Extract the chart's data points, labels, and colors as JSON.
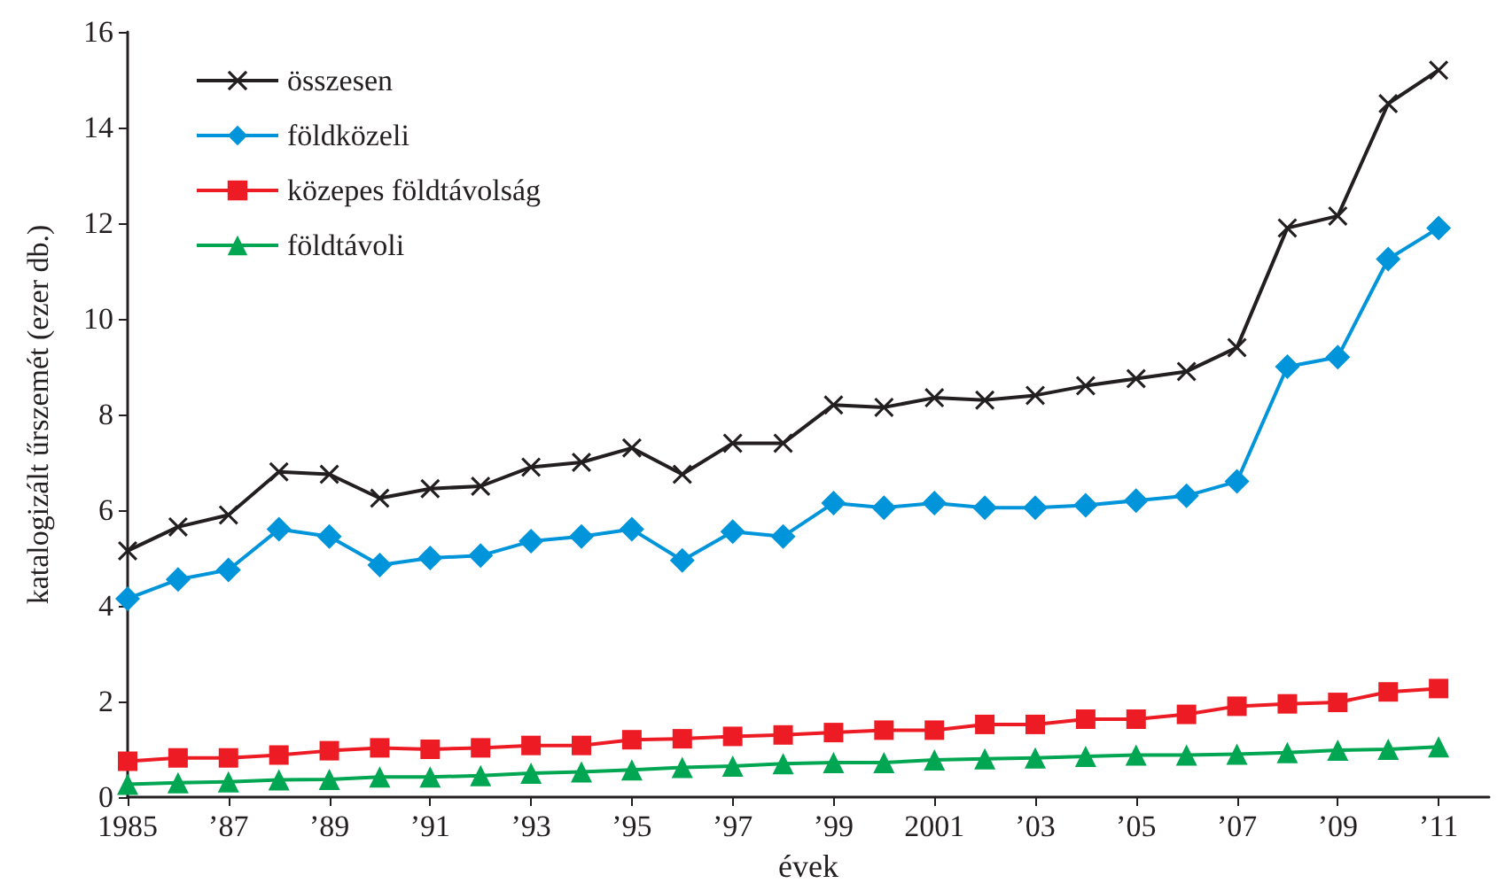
{
  "chart_data": {
    "type": "line",
    "xlabel": "évek",
    "ylabel": "katalogizált űrszemét (ezer db.)",
    "x": [
      1985,
      1986,
      1987,
      1988,
      1989,
      1990,
      1991,
      1992,
      1993,
      1994,
      1995,
      1996,
      1997,
      1998,
      1999,
      2000,
      2001,
      2002,
      2003,
      2004,
      2005,
      2006,
      2007,
      2008,
      2009,
      2010,
      2011
    ],
    "series": [
      {
        "name": "összesen",
        "color": "#231f20",
        "marker": "cross",
        "values": [
          5.15,
          5.65,
          5.9,
          6.8,
          6.75,
          6.25,
          6.45,
          6.5,
          6.9,
          7.0,
          7.3,
          6.75,
          7.4,
          7.4,
          8.2,
          8.15,
          8.35,
          8.3,
          8.4,
          8.6,
          8.75,
          8.9,
          9.4,
          11.9,
          12.15,
          14.5,
          15.2
        ]
      },
      {
        "name": "földközeli",
        "color": "#0095da",
        "marker": "diamond",
        "values": [
          4.15,
          4.55,
          4.75,
          5.6,
          5.45,
          4.85,
          5.0,
          5.05,
          5.35,
          5.45,
          5.6,
          4.95,
          5.55,
          5.45,
          6.15,
          6.05,
          6.15,
          6.05,
          6.05,
          6.1,
          6.2,
          6.3,
          6.6,
          9.0,
          9.2,
          11.25,
          11.9
        ]
      },
      {
        "name": "közepes földtávolság",
        "color": "#ed1c24",
        "marker": "square",
        "values": [
          0.75,
          0.82,
          0.82,
          0.88,
          0.97,
          1.03,
          1.0,
          1.03,
          1.08,
          1.08,
          1.2,
          1.22,
          1.27,
          1.3,
          1.35,
          1.4,
          1.4,
          1.52,
          1.52,
          1.63,
          1.63,
          1.73,
          1.9,
          1.95,
          1.98,
          2.2,
          2.27
        ]
      },
      {
        "name": "földtávoli",
        "color": "#00a651",
        "marker": "triangle",
        "values": [
          0.27,
          0.3,
          0.32,
          0.36,
          0.37,
          0.42,
          0.42,
          0.45,
          0.5,
          0.53,
          0.57,
          0.62,
          0.65,
          0.7,
          0.72,
          0.72,
          0.78,
          0.8,
          0.82,
          0.85,
          0.88,
          0.88,
          0.9,
          0.93,
          0.98,
          1.0,
          1.05
        ]
      }
    ],
    "xlim": [
      1985,
      2012
    ],
    "xticks": [
      1985,
      {
        "value": 1987,
        "label": "’87"
      },
      {
        "value": 1989,
        "label": "’89"
      },
      {
        "value": 1991,
        "label": "’91"
      },
      {
        "value": 1993,
        "label": "’93"
      },
      {
        "value": 1995,
        "label": "’95"
      },
      {
        "value": 1997,
        "label": "’97"
      },
      {
        "value": 1999,
        "label": "’99"
      },
      2001,
      {
        "value": 2003,
        "label": "’03"
      },
      {
        "value": 2005,
        "label": "’05"
      },
      {
        "value": 2007,
        "label": "’07"
      },
      {
        "value": 2009,
        "label": "’09"
      },
      {
        "value": 2011,
        "label": "’11"
      }
    ],
    "ylim": [
      0,
      16
    ],
    "yticks": [
      0,
      2,
      4,
      6,
      8,
      10,
      12,
      14,
      16
    ],
    "grid": false,
    "legend": "top left",
    "line_style": "solid"
  }
}
